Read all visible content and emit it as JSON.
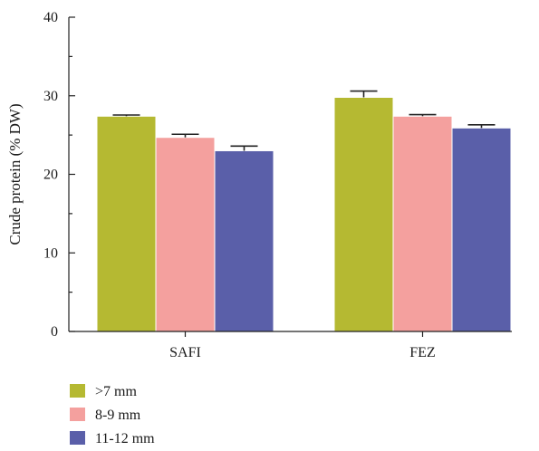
{
  "chart_data": {
    "type": "bar",
    "categories": [
      "SAFI",
      "FEZ"
    ],
    "ylabel": "Crude protein (% DW)",
    "ylim": [
      0,
      40
    ],
    "yticks": [
      0,
      10,
      20,
      30,
      40
    ],
    "grid": false,
    "legend_position": "bottom-left",
    "series": [
      {
        "name": ">7 mm",
        "color": "#b5b932",
        "values": [
          27.4,
          29.8
        ],
        "errors": [
          0.15,
          0.8
        ]
      },
      {
        "name": "8-9 mm",
        "color": "#f4a09e",
        "values": [
          24.7,
          27.4
        ],
        "errors": [
          0.4,
          0.2
        ]
      },
      {
        "name": "11-12 mm",
        "color": "#5a5fa9",
        "values": [
          23.0,
          25.9
        ],
        "errors": [
          0.6,
          0.4
        ]
      }
    ]
  }
}
